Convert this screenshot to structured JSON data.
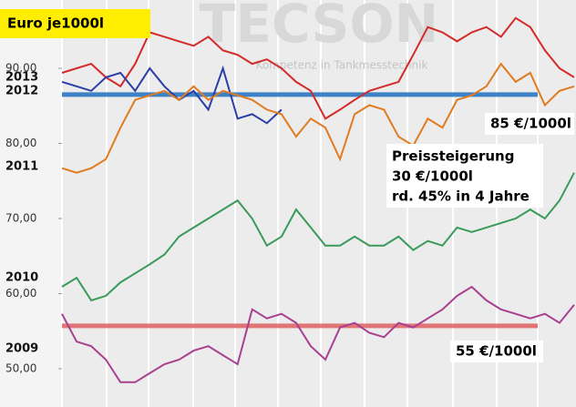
{
  "chart_data": {
    "type": "line",
    "title": "Euro je1000l",
    "watermark": {
      "brand": "TECSON",
      "slogan": "Kompetenz in Tankmesstechnik"
    },
    "annotations": [
      "85 €/1000l",
      "Preissteigerung",
      "30 €/1000l",
      "rd. 45%  in 4 Jahre",
      "55 €/1000l"
    ],
    "ylim": [
      44.9,
      99.1
    ],
    "yticks": [
      {
        "value": 90,
        "label": "90,00"
      },
      {
        "value": 80,
        "label": "80,00"
      },
      {
        "value": 70,
        "label": "70,00"
      },
      {
        "value": 60,
        "label": "60,00"
      },
      {
        "value": 50,
        "label": "50,00"
      }
    ],
    "categories": [
      null,
      null,
      null,
      null,
      null,
      null,
      null,
      null,
      null,
      null,
      null,
      null,
      null,
      null,
      null,
      null,
      null,
      null,
      null,
      null,
      null,
      null,
      null,
      null,
      null,
      null,
      null,
      null,
      null,
      null,
      null,
      null,
      null,
      null,
      null,
      null
    ],
    "reference_lines": [
      {
        "value": 86.5,
        "color": "#1f6fc0"
      },
      {
        "value": 55.7,
        "color": "#e06060"
      }
    ],
    "series": [
      {
        "name": "2013",
        "color": "#d42a2a",
        "values": [
          89.4,
          90,
          90.6,
          88.8,
          87.6,
          90.6,
          94.8,
          94.2,
          93.6,
          93,
          94.2,
          92.4,
          91.8,
          90.6,
          91.2,
          90,
          88.2,
          87,
          83.3,
          84.5,
          85.8,
          87,
          87.6,
          88.2,
          91.8,
          95.5,
          94.8,
          93.6,
          94.8,
          95.5,
          94.2,
          96.7,
          95.5,
          92.4,
          90,
          88.8
        ]
      },
      {
        "name": "2012",
        "color": "#2a3fa8",
        "values": [
          88.2,
          87.6,
          87,
          88.8,
          89.4,
          87,
          90,
          87.6,
          85.8,
          87,
          84.5,
          90,
          83.3,
          83.9,
          82.7,
          84.5,
          null,
          null,
          null,
          null,
          null,
          null,
          null,
          null,
          null,
          null,
          null,
          null,
          null,
          null,
          null,
          null,
          null,
          null,
          null,
          null
        ]
      },
      {
        "name": "2011",
        "color": "#e07b20",
        "values": [
          76.7,
          76.1,
          76.7,
          77.9,
          82.1,
          85.8,
          86.4,
          87,
          85.8,
          87.6,
          85.8,
          87,
          86.4,
          85.8,
          84.5,
          83.9,
          80.9,
          83.3,
          82.1,
          77.9,
          83.9,
          85.1,
          84.5,
          80.9,
          79.7,
          83.3,
          82.1,
          85.8,
          86.4,
          87.6,
          90.6,
          88.2,
          89.4,
          85.1,
          87,
          87.6
        ]
      },
      {
        "name": "2010",
        "color": "#3a9a5a",
        "values": [
          60.9,
          62.1,
          59.1,
          59.7,
          61.5,
          62.7,
          63.9,
          65.2,
          67.6,
          68.8,
          70,
          71.2,
          72.4,
          70,
          66.4,
          67.6,
          71.2,
          68.8,
          66.4,
          66.4,
          67.6,
          66.4,
          66.4,
          67.6,
          65.8,
          67,
          66.4,
          68.8,
          68.2,
          68.8,
          69.4,
          70,
          71.2,
          70,
          72.4,
          76.1
        ]
      },
      {
        "name": "2009",
        "color": "#a8408f",
        "values": [
          57.3,
          53.6,
          53,
          51.2,
          48.2,
          48.2,
          49.4,
          50.6,
          51.2,
          52.4,
          53,
          51.8,
          50.6,
          57.9,
          56.7,
          57.3,
          56.1,
          53,
          51.2,
          55.5,
          56.1,
          54.8,
          54.2,
          56.1,
          55.5,
          56.7,
          57.9,
          59.7,
          60.9,
          59.1,
          57.9,
          57.3,
          56.7,
          57.3,
          56.1,
          58.5
        ]
      }
    ]
  }
}
